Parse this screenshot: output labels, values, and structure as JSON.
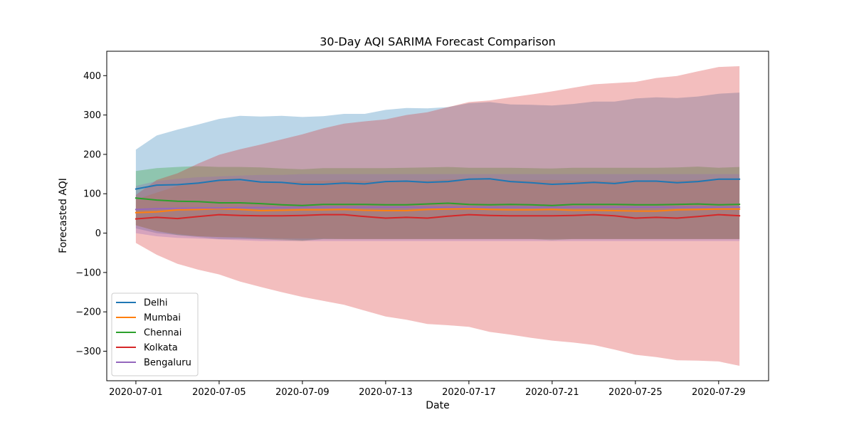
{
  "chart_data": {
    "type": "line",
    "title": "30-Day AQI SARIMA Forecast Comparison",
    "xlabel": "Date",
    "ylabel": "Forecasted AQI",
    "x": [
      "2020-07-01",
      "2020-07-02",
      "2020-07-03",
      "2020-07-04",
      "2020-07-05",
      "2020-07-06",
      "2020-07-07",
      "2020-07-08",
      "2020-07-09",
      "2020-07-10",
      "2020-07-11",
      "2020-07-12",
      "2020-07-13",
      "2020-07-14",
      "2020-07-15",
      "2020-07-16",
      "2020-07-17",
      "2020-07-18",
      "2020-07-19",
      "2020-07-20",
      "2020-07-21",
      "2020-07-22",
      "2020-07-23",
      "2020-07-24",
      "2020-07-25",
      "2020-07-26",
      "2020-07-27",
      "2020-07-28",
      "2020-07-29",
      "2020-07-30"
    ],
    "xticks": [
      "2020-07-01",
      "2020-07-05",
      "2020-07-09",
      "2020-07-13",
      "2020-07-17",
      "2020-07-21",
      "2020-07-25",
      "2020-07-29"
    ],
    "xlim": [
      "2020-06-29.6",
      "2020-07-31.4"
    ],
    "ylim": [
      -375,
      462
    ],
    "yticks": [
      -300,
      -200,
      -100,
      0,
      100,
      200,
      300,
      400
    ],
    "grid": false,
    "legend_position": "lower-left",
    "series": [
      {
        "name": "Delhi",
        "color": "#1f77b4",
        "values": [
          112,
          122,
          123,
          127,
          134,
          136,
          130,
          129,
          124,
          124,
          127,
          125,
          131,
          132,
          129,
          131,
          137,
          138,
          131,
          128,
          124,
          126,
          129,
          126,
          132,
          132,
          128,
          131,
          137,
          137
        ],
        "lower": [
          12,
          0,
          -5,
          -10,
          -15,
          -15,
          -15,
          -15,
          -18,
          -15,
          -15,
          -15,
          -15,
          -15,
          -15,
          -15,
          -15,
          -15,
          -15,
          -15,
          -15,
          -15,
          -15,
          -15,
          -15,
          -15,
          -15,
          -15,
          -15,
          -15
        ],
        "upper": [
          212,
          248,
          263,
          276,
          290,
          298,
          296,
          298,
          295,
          297,
          303,
          303,
          313,
          318,
          317,
          320,
          330,
          333,
          327,
          326,
          324,
          328,
          334,
          334,
          342,
          345,
          343,
          347,
          354,
          357
        ]
      },
      {
        "name": "Mumbai",
        "color": "#ff7f0e",
        "values": [
          52,
          54,
          59,
          60,
          62,
          60,
          57,
          58,
          59,
          59,
          60,
          58,
          57,
          57,
          60,
          61,
          62,
          60,
          59,
          59,
          60,
          58,
          58,
          57,
          56,
          56,
          59,
          60,
          61,
          61
        ],
        "lower": [
          20,
          5,
          -2,
          -8,
          -10,
          -10,
          -12,
          -14,
          -14,
          -14,
          -15,
          -15,
          -15,
          -15,
          -15,
          -15,
          -15,
          -15,
          -15,
          -15,
          -15,
          -15,
          -15,
          -15,
          -15,
          -15,
          -15,
          -15,
          -15,
          -15
        ],
        "upper": [
          85,
          103,
          120,
          128,
          134,
          132,
          130,
          130,
          132,
          133,
          134,
          133,
          132,
          132,
          134,
          136,
          137,
          135,
          134,
          134,
          135,
          133,
          133,
          132,
          132,
          132,
          134,
          135,
          137,
          137
        ]
      },
      {
        "name": "Chennai",
        "color": "#2ca02c",
        "values": [
          89,
          84,
          81,
          80,
          77,
          77,
          75,
          72,
          70,
          73,
          73,
          73,
          72,
          72,
          74,
          76,
          73,
          72,
          73,
          72,
          70,
          73,
          73,
          73,
          72,
          72,
          73,
          74,
          72,
          73
        ],
        "lower": [
          20,
          5,
          -5,
          -8,
          -10,
          -12,
          -15,
          -18,
          -20,
          -15,
          -15,
          -15,
          -15,
          -15,
          -15,
          -15,
          -15,
          -15,
          -15,
          -15,
          -18,
          -15,
          -15,
          -15,
          -15,
          -15,
          -15,
          -15,
          -15,
          -15
        ],
        "upper": [
          158,
          165,
          168,
          170,
          168,
          168,
          167,
          164,
          162,
          165,
          165,
          165,
          165,
          166,
          167,
          168,
          166,
          166,
          166,
          165,
          164,
          166,
          166,
          166,
          166,
          166,
          167,
          169,
          166,
          168
        ]
      },
      {
        "name": "Kolkata",
        "color": "#d62728",
        "values": [
          36,
          40,
          37,
          42,
          47,
          45,
          44,
          44,
          45,
          47,
          47,
          42,
          38,
          40,
          38,
          43,
          47,
          45,
          44,
          44,
          44,
          45,
          47,
          44,
          38,
          40,
          38,
          42,
          47,
          44
        ],
        "lower": [
          -25,
          -55,
          -78,
          -93,
          -105,
          -123,
          -137,
          -150,
          -162,
          -172,
          -182,
          -197,
          -212,
          -220,
          -231,
          -234,
          -238,
          -251,
          -258,
          -266,
          -273,
          -278,
          -284,
          -296,
          -309,
          -315,
          -323,
          -324,
          -326,
          -337
        ],
        "upper": [
          97,
          135,
          152,
          177,
          199,
          213,
          225,
          238,
          251,
          266,
          278,
          284,
          289,
          300,
          307,
          320,
          333,
          337,
          345,
          352,
          360,
          369,
          378,
          381,
          384,
          394,
          399,
          411,
          422,
          424
        ]
      },
      {
        "name": "Bengaluru",
        "color": "#9467bd",
        "values": [
          60,
          62,
          63,
          64,
          64,
          65,
          65,
          65,
          66,
          66,
          66,
          66,
          66,
          66,
          66,
          66,
          66,
          66,
          66,
          66,
          66,
          66,
          66,
          66,
          66,
          66,
          66,
          66,
          66,
          66
        ],
        "lower": [
          0,
          -8,
          -12,
          -14,
          -16,
          -18,
          -20,
          -20,
          -20,
          -20,
          -20,
          -20,
          -20,
          -20,
          -20,
          -20,
          -20,
          -20,
          -20,
          -20,
          -20,
          -20,
          -20,
          -20,
          -20,
          -20,
          -20,
          -20,
          -20,
          -20
        ],
        "upper": [
          120,
          132,
          138,
          142,
          144,
          146,
          148,
          148,
          150,
          150,
          150,
          150,
          150,
          150,
          150,
          150,
          150,
          150,
          150,
          150,
          150,
          150,
          150,
          150,
          150,
          150,
          150,
          150,
          150,
          150
        ]
      }
    ]
  }
}
